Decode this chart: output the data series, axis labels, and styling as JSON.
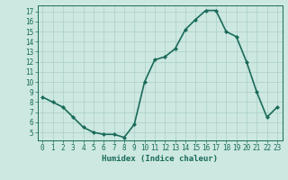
{
  "x": [
    0,
    1,
    2,
    3,
    4,
    5,
    6,
    7,
    8,
    9,
    10,
    11,
    12,
    13,
    14,
    15,
    16,
    17,
    18,
    19,
    20,
    21,
    22,
    23
  ],
  "y": [
    8.5,
    8.0,
    7.5,
    6.5,
    5.5,
    5.0,
    4.8,
    4.8,
    4.5,
    5.8,
    10.0,
    12.2,
    12.5,
    13.3,
    15.2,
    16.2,
    17.1,
    17.1,
    15.0,
    14.5,
    12.0,
    9.0,
    6.5,
    7.5
  ],
  "line_color": "#1a6b5a",
  "marker": "D",
  "marker_size": 2,
  "background_color": "#cce8e0",
  "grid_color": "#aacfc8",
  "tick_color": "#1a6b5a",
  "spine_color": "#1a6b5a",
  "xlabel": "Humidex (Indice chaleur)",
  "xlim": [
    -0.5,
    23.5
  ],
  "ylim": [
    4.2,
    17.6
  ],
  "xticks": [
    0,
    1,
    2,
    3,
    4,
    5,
    6,
    7,
    8,
    9,
    10,
    11,
    12,
    13,
    14,
    15,
    16,
    17,
    18,
    19,
    20,
    21,
    22,
    23
  ],
  "yticks": [
    5,
    6,
    7,
    8,
    9,
    10,
    11,
    12,
    13,
    14,
    15,
    16,
    17
  ],
  "xlabel_fontsize": 6.5,
  "tick_fontsize": 5.5,
  "linewidth": 1.2
}
